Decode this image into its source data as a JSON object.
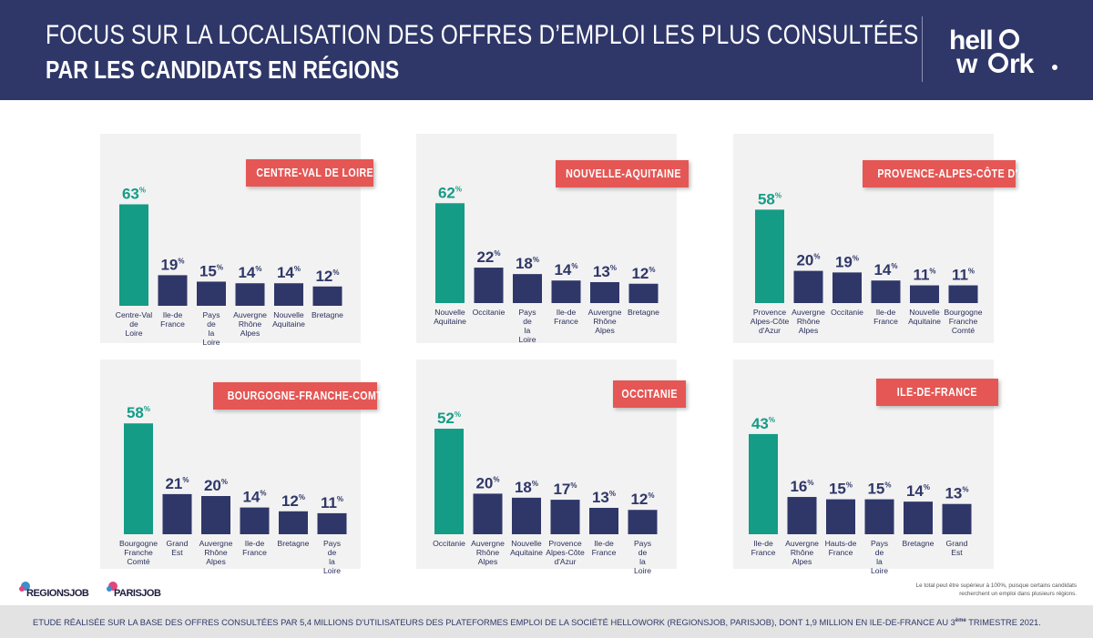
{
  "header": {
    "title_line1": "FOCUS SUR LA LOCALISATION DES OFFRES D’EMPLOI LES PLUS CONSULTÉES",
    "title_line2": "PAR LES CANDIDATS EN RÉGIONS",
    "logo_text": "hellowork"
  },
  "colors": {
    "header_bg": "#2f3769",
    "highlight_bar": "#149c86",
    "other_bar": "#2f3769",
    "region_tag": "#e45755",
    "panel_bg": "#f2f2f2"
  },
  "chart_data": [
    {
      "type": "bar",
      "title": "CENTRE-VAL DE LOIRE",
      "unit": "%",
      "categories": [
        "Centre-Val de Loire",
        "Ile-de France",
        "Pays de la Loire",
        "Auvergne Rhône Alpes",
        "Nouvelle Aquitaine",
        "Bretagne"
      ],
      "values": [
        63,
        19,
        15,
        14,
        14,
        12
      ],
      "highlight_index": 0
    },
    {
      "type": "bar",
      "title": "NOUVELLE-AQUITAINE",
      "unit": "%",
      "categories": [
        "Nouvelle Aquitaine",
        "Occitanie",
        "Pays de la Loire",
        "Ile-de France",
        "Auvergne Rhône Alpes",
        "Bretagne"
      ],
      "values": [
        62,
        22,
        18,
        14,
        13,
        12
      ],
      "highlight_index": 0
    },
    {
      "type": "bar",
      "title": "PROVENCE-ALPES-CÔTE D'AZUR",
      "unit": "%",
      "categories": [
        "Provence Alpes-Côte d'Azur",
        "Auvergne Rhône Alpes",
        "Occitanie",
        "Ile-de France",
        "Nouvelle Aquitaine",
        "Bourgogne Franche Comté"
      ],
      "values": [
        58,
        20,
        19,
        14,
        11,
        11
      ],
      "highlight_index": 0
    },
    {
      "type": "bar",
      "title": "BOURGOGNE-FRANCHE-COMTÉ",
      "unit": "%",
      "categories": [
        "Bourgogne Franche Comté",
        "Grand Est",
        "Auvergne Rhône Alpes",
        "Ile-de France",
        "Bretagne",
        "Pays de la Loire"
      ],
      "values": [
        58,
        21,
        20,
        14,
        12,
        11
      ],
      "highlight_index": 0
    },
    {
      "type": "bar",
      "title": "OCCITANIE",
      "unit": "%",
      "categories": [
        "Occitanie",
        "Auvergne Rhône Alpes",
        "Nouvelle Aquitaine",
        "Provence Alpes-Côte d'Azur",
        "Ile-de France",
        "Pays de la Loire"
      ],
      "values": [
        52,
        20,
        18,
        17,
        13,
        12
      ],
      "highlight_index": 0
    },
    {
      "type": "bar",
      "title": "ILE-DE-FRANCE",
      "unit": "%",
      "categories": [
        "Ile-de France",
        "Auvergne Rhône Alpes",
        "Hauts-de France",
        "Pays de la Loire",
        "Bretagne",
        "Grand Est"
      ],
      "values": [
        43,
        16,
        15,
        15,
        14,
        13
      ],
      "highlight_index": 0
    }
  ],
  "footnote": "Le total peut être supérieur à 100%, puisque certains candidats recherchent un emploi dans plusieurs régions.",
  "footer": {
    "text": "ETUDE RÉALISÉE SUR LA BASE DES OFFRES CONSULTÉES PAR 5,4 MILLIONS D'UTILISATEURS DES PLATEFORMES EMPLOI DE LA SOCIÉTÉ HELLOWORK (REGIONSJOB, PARISJOB), DONT 1,9 MILLION EN ILE-DE-FRANCE AU 3",
    "superscript": "ème",
    "text_end": " TRIMESTRE 2021."
  },
  "brands": {
    "regionsjob": "REGIONSJOB",
    "parisjob": "PARISJOB"
  }
}
